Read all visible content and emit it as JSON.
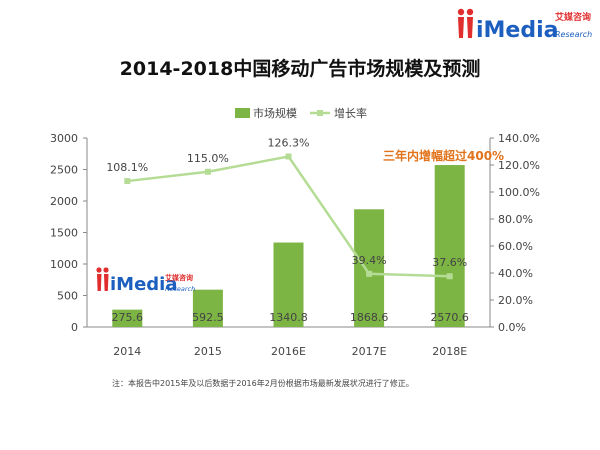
{
  "brand": {
    "logo_text": "iMedia",
    "logo_cn": "艾媒咨询",
    "logo_sub": "Research",
    "watermark_text": "iMedia",
    "watermark_cn": "艾媒咨询",
    "watermark_sub": "Research"
  },
  "title": "2014-2018中国移动广告市场规模及预测",
  "footnote": "注：本报告中2015年及以后数据于2016年2月份根据市场最新发展状况进行了修正。",
  "colors": {
    "bar": "#7db544",
    "line": "#b5dc95",
    "callout": "#e2731b",
    "text": "#444444",
    "axis": "#888888"
  },
  "chart_data": {
    "type": "bar",
    "title": "2014-2018中国移动广告市场规模及预测",
    "categories": [
      "2014",
      "2015",
      "2016E",
      "2017E",
      "2018E"
    ],
    "series": [
      {
        "name": "市场规模",
        "type": "bar",
        "axis": "left",
        "values": [
          275.6,
          592.5,
          1340.8,
          1868.6,
          2570.6
        ],
        "labels": [
          "275.6",
          "592.5",
          "1340.8",
          "1868.6",
          "2570.6"
        ]
      },
      {
        "name": "增长率",
        "type": "line",
        "axis": "right",
        "values": [
          108.1,
          115.0,
          126.3,
          39.4,
          37.6
        ],
        "labels": [
          "108.1%",
          "115.0%",
          "126.3%",
          "39.4%",
          "37.6%"
        ]
      }
    ],
    "y_left": {
      "min": 0,
      "max": 3000,
      "ticks": [
        0,
        500,
        1000,
        1500,
        2000,
        2500,
        3000
      ],
      "tick_labels": [
        "0",
        "500",
        "1000",
        "1500",
        "2000",
        "2500",
        "3000"
      ]
    },
    "y_right": {
      "min": 0,
      "max": 140,
      "ticks": [
        0,
        20,
        40,
        60,
        80,
        100,
        120,
        140
      ],
      "tick_labels": [
        "0.0%",
        "20.0%",
        "40.0%",
        "60.0%",
        "80.0%",
        "100.0%",
        "120.0%",
        "140.0%"
      ]
    },
    "legend_position": "top-center",
    "grid": false,
    "annotation": "三年内增幅超过400%"
  }
}
